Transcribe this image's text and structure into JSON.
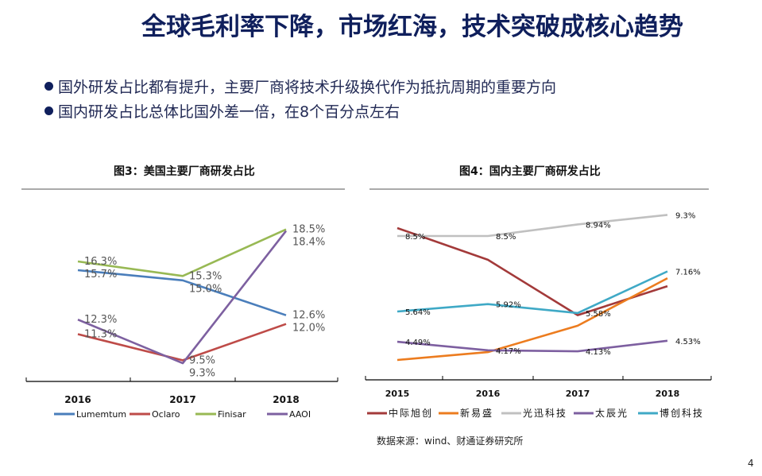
{
  "title": "全球毛利率下降，市场红海，技术突破成核心趋势",
  "bullets": [
    "国外研发占比都有提升，主要厂商将技术升级换代作为抵抗周期的重要方向",
    "国内研发占比总体比国外差一倍，在8个百分点左右"
  ],
  "source": "数据来源：wind、财通证券研究所",
  "page_number": "4",
  "chart_data": [
    {
      "type": "line",
      "title": "图3：美国主要厂商研发占比",
      "categories": [
        "2016",
        "2017",
        "2018"
      ],
      "series": [
        {
          "name": "Lumemtum",
          "color": "#4a7ebb",
          "values": [
            15.7,
            15.0,
            12.6
          ],
          "labels": [
            "15.7%",
            "15.0%",
            "12.6%"
          ]
        },
        {
          "name": "Oclaro",
          "color": "#be4b48",
          "values": [
            11.3,
            9.5,
            12.0
          ],
          "labels": [
            "11.3%",
            "9.5%",
            "12.0%"
          ]
        },
        {
          "name": "Finisar",
          "color": "#98b954",
          "values": [
            16.3,
            15.3,
            18.5
          ],
          "labels": [
            "16.3%",
            "15.3%",
            "18.5%"
          ]
        },
        {
          "name": "AAOI",
          "color": "#7d60a0",
          "values": [
            12.3,
            9.3,
            18.4
          ],
          "labels": [
            "12.3%",
            "9.3%",
            "18.4%"
          ]
        }
      ],
      "grid": false,
      "legend": "bottom"
    },
    {
      "type": "line",
      "title": "图4：国内主要厂商研发占比",
      "categories": [
        "2015",
        "2016",
        "2017",
        "2018"
      ],
      "series": [
        {
          "name": "中际旭创",
          "color": "#a33a3a",
          "values": [
            8.8,
            7.6,
            5.5,
            6.6
          ],
          "labels": [
            null,
            null,
            null,
            null
          ]
        },
        {
          "name": "新易盛",
          "color": "#ec7c1f",
          "values": [
            3.8,
            4.1,
            5.1,
            6.9
          ],
          "labels": [
            null,
            null,
            null,
            null
          ]
        },
        {
          "name": "光迅科技",
          "color": "#c0c0c0",
          "values": [
            8.5,
            8.5,
            8.94,
            9.3
          ],
          "labels": [
            "8.5%",
            "8.5%",
            "8.94%",
            "9.3%"
          ]
        },
        {
          "name": "太辰光",
          "color": "#7d5fa0",
          "values": [
            4.49,
            4.17,
            4.13,
            4.53
          ],
          "labels": [
            "4.49%",
            "4.17%",
            "4.13%",
            "4.53%"
          ]
        },
        {
          "name": "博创科技",
          "color": "#3fa9c6",
          "values": [
            5.64,
            5.92,
            5.58,
            7.16
          ],
          "labels": [
            "5.64%",
            "5.92%",
            "5.58%",
            "7.16%"
          ]
        }
      ],
      "grid": false,
      "legend": "bottom"
    }
  ]
}
